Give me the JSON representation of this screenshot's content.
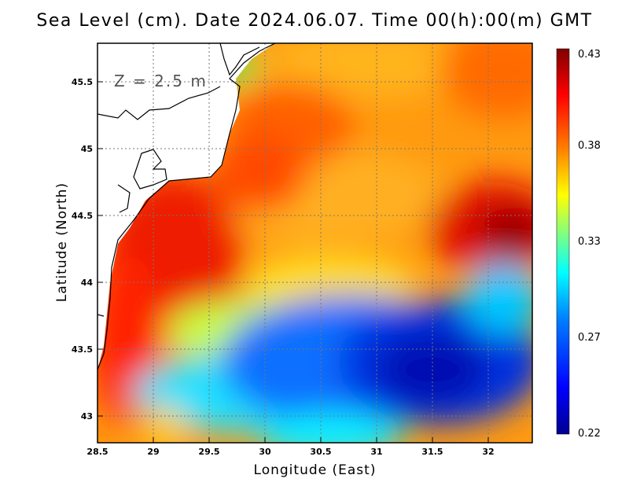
{
  "title": "Sea Level (cm). Date 2024.06.07. Time 00(h):00(m) GMT",
  "depth_label": "Z = 2.5 m",
  "xlabel": "Longitude (East)",
  "ylabel": "Latitude (North)",
  "x_ticks": [
    "28.5",
    "29",
    "29.5",
    "30",
    "30.5",
    "31",
    "31.5",
    "32"
  ],
  "y_ticks": [
    "45.5",
    "45",
    "44.5",
    "44",
    "43.5",
    "43"
  ],
  "colorbar": {
    "labels": [
      "0.43",
      "0.38",
      "0.33",
      "0.27",
      "0.22"
    ],
    "min": 0.22,
    "max": 0.43
  },
  "map": {
    "lon_range": [
      28.5,
      32.4
    ],
    "lat_range": [
      42.8,
      45.8
    ],
    "colormap": [
      "#00008f",
      "#0000ff",
      "#0080ff",
      "#00ffff",
      "#80ff80",
      "#ffff00",
      "#ff8000",
      "#ff0000",
      "#800000"
    ]
  }
}
